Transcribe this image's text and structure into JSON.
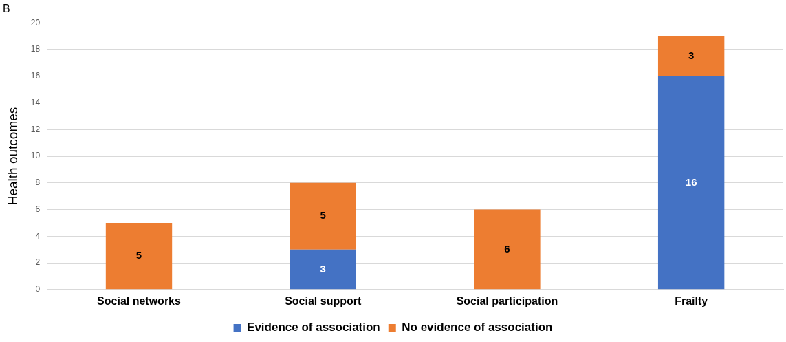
{
  "chart_data": {
    "type": "bar",
    "title": "B",
    "ylabel": "Health outcomes",
    "categories": [
      "Social networks",
      "Social support",
      "Social participation",
      "Frailty"
    ],
    "series": [
      {
        "name": "Evidence of association",
        "color": "#4472c4",
        "values": [
          null,
          3,
          null,
          16
        ]
      },
      {
        "name": "No evidence of association",
        "color": "#ed7d31",
        "values": [
          5,
          5,
          6,
          3
        ]
      }
    ],
    "stacked": true,
    "ylim": [
      0,
      20
    ],
    "yticks": [
      0,
      2,
      4,
      6,
      8,
      10,
      12,
      14,
      16,
      18,
      20
    ],
    "grid": "y",
    "legend": "bottom",
    "data_labels": true
  }
}
